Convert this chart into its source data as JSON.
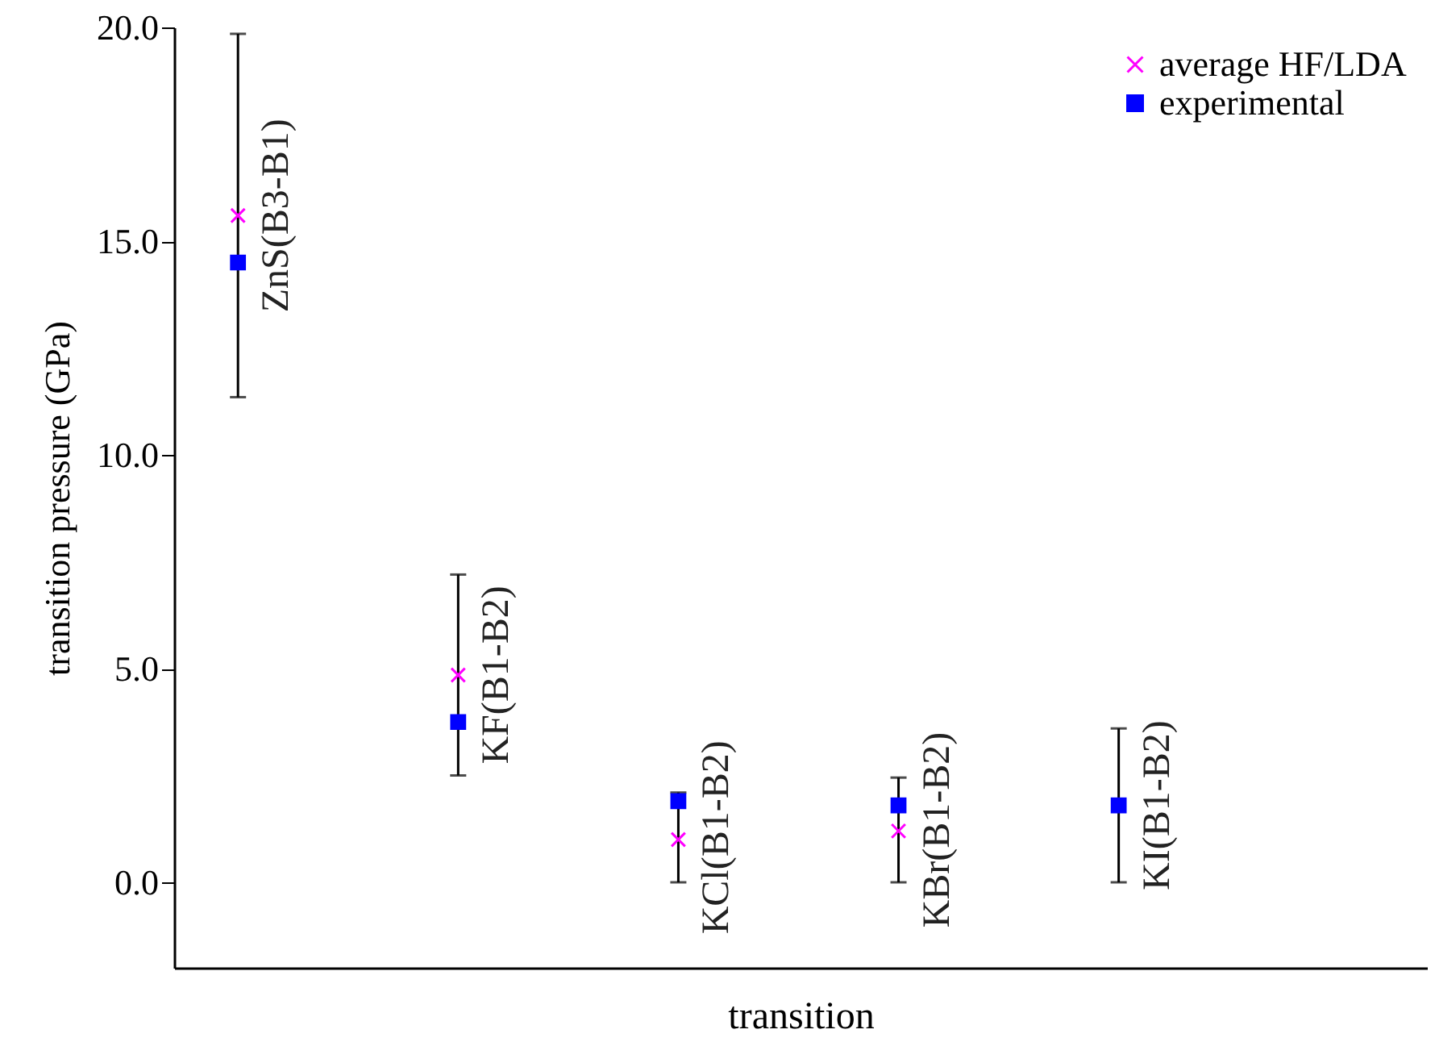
{
  "chart_data": {
    "type": "scatter",
    "xlabel": "transition",
    "ylabel": "transition pressure (GPa)",
    "categories": [
      "ZnS(B3-B1)",
      "KF(B1-B2)",
      "KCl(B1-B2)",
      "KBr(B1-B2)",
      "KI(B1-B2)"
    ],
    "series": [
      {
        "name": "average HF/LDA",
        "color": "#ff00ff",
        "marker": "cross",
        "values": [
          15.6,
          4.85,
          1.0,
          1.2,
          null
        ]
      },
      {
        "name": "experimental",
        "color": "#0000ff",
        "marker": "square",
        "values": [
          14.5,
          3.75,
          1.9,
          1.8,
          1.8
        ],
        "errors": [
          [
            11.35,
            19.85
          ],
          [
            2.5,
            7.2
          ],
          [
            0,
            2.1
          ],
          [
            0,
            2.45
          ],
          [
            0,
            3.6
          ]
        ]
      }
    ],
    "ylim": [
      -2,
      20
    ],
    "yticks": [
      {
        "value": 0,
        "label": "0.0"
      },
      {
        "value": 5,
        "label": "5.0"
      },
      {
        "value": 10,
        "label": "10.0"
      },
      {
        "value": 15,
        "label": "15.0"
      },
      {
        "value": 20,
        "label": "20.0"
      }
    ],
    "tick_labels": "y",
    "grid": false,
    "legend": "top right"
  }
}
